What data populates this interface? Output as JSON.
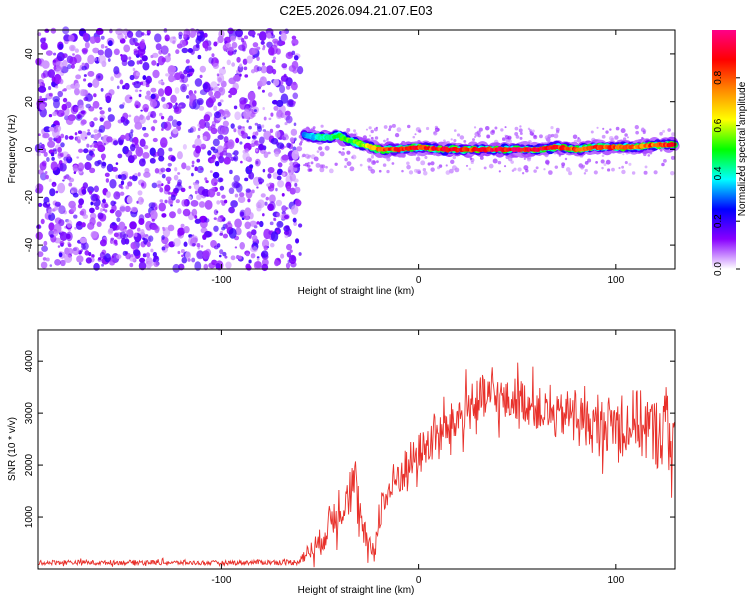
{
  "figure_title": "C2E5.2026.094.21.07.E03",
  "chart_data": [
    {
      "type": "heatmap",
      "name": "spectrogram",
      "xlabel": "Height of straight line (km)",
      "ylabel": "Frequency (Hz)",
      "xlim": [
        -193,
        130
      ],
      "ylim": [
        -50,
        50
      ],
      "xticks": [
        -100,
        0,
        100
      ],
      "yticks": [
        -40,
        -20,
        0,
        20,
        40
      ],
      "xtick_labels": [
        "-100",
        "0",
        "100"
      ],
      "ytick_labels": [
        "-40",
        "-20",
        "0",
        "20",
        "40"
      ],
      "noise_region_x": [
        -193,
        -60
      ],
      "signal_track": {
        "x": [
          -58,
          -50,
          -45,
          -40,
          -36,
          -32,
          -28,
          -24,
          -20,
          -10,
          0,
          10,
          20,
          30,
          40,
          50,
          60,
          70,
          80,
          90,
          100,
          110,
          120,
          130
        ],
        "y": [
          6,
          5,
          5,
          6,
          4,
          3,
          2,
          1,
          0,
          0,
          1,
          0,
          0,
          0,
          0,
          0,
          0,
          1,
          0,
          1,
          1,
          1,
          2,
          2
        ],
        "peak_amplitude": [
          0.35,
          0.4,
          0.45,
          0.5,
          0.55,
          0.55,
          0.6,
          0.7,
          0.85,
          0.9,
          0.88,
          0.9,
          0.92,
          0.9,
          0.93,
          0.95,
          0.95,
          0.9,
          0.85,
          0.85,
          0.85,
          0.8,
          0.85,
          0.9
        ]
      },
      "colorbar": {
        "label": "Normalized spectral amplitude",
        "range": [
          0,
          1
        ],
        "ticks": [
          0.0,
          0.2,
          0.4,
          0.6,
          0.8
        ],
        "tick_labels": [
          "0.0",
          "0.2",
          "0.4",
          "0.6",
          "0.8"
        ],
        "colormap": [
          "#ffffff",
          "#8800ff",
          "#0000ff",
          "#00ffff",
          "#00ff00",
          "#ffff00",
          "#ff8800",
          "#ff0000",
          "#ff0088"
        ]
      }
    },
    {
      "type": "line",
      "name": "snr",
      "xlabel": "Height of straight line (km)",
      "ylabel": "SNR (10 * v/v)",
      "xlim": [
        -193,
        130
      ],
      "ylim": [
        0,
        4600
      ],
      "xticks": [
        -100,
        0,
        100
      ],
      "yticks": [
        1000,
        2000,
        3000,
        4000
      ],
      "xtick_labels": [
        "-100",
        "0",
        "100"
      ],
      "ytick_labels": [
        "1000",
        "2000",
        "3000",
        "4000"
      ],
      "color": "#e8302a",
      "series": [
        {
          "name": "SNR",
          "x": [
            -193,
            -180,
            -160,
            -140,
            -120,
            -100,
            -80,
            -62,
            -50,
            -45,
            -40,
            -36,
            -32,
            -30,
            -28,
            -25,
            -22,
            -20,
            -15,
            -10,
            -5,
            0,
            5,
            10,
            15,
            20,
            25,
            30,
            35,
            40,
            45,
            50,
            55,
            60,
            65,
            70,
            75,
            80,
            85,
            90,
            95,
            100,
            105,
            110,
            115,
            120,
            125,
            130
          ],
          "y": [
            120,
            130,
            120,
            130,
            120,
            120,
            130,
            130,
            500,
            900,
            1200,
            1500,
            1600,
            900,
            700,
            400,
            400,
            1100,
            1500,
            1800,
            2000,
            2200,
            2400,
            2600,
            2700,
            2900,
            3100,
            3200,
            3300,
            3300,
            3200,
            3300,
            3200,
            3100,
            3000,
            2900,
            3000,
            3000,
            2800,
            2700,
            2800,
            2800,
            2700,
            2900,
            2700,
            2600,
            2700,
            2600
          ],
          "spread": [
            60,
            70,
            60,
            70,
            60,
            60,
            70,
            80,
            400,
            500,
            700,
            700,
            800,
            600,
            500,
            300,
            300,
            500,
            600,
            600,
            600,
            600,
            600,
            600,
            600,
            650,
            650,
            700,
            700,
            650,
            600,
            600,
            600,
            600,
            600,
            600,
            650,
            650,
            700,
            750,
            750,
            800,
            850,
            900,
            950,
            1000,
            1050,
            1100
          ]
        }
      ]
    }
  ]
}
